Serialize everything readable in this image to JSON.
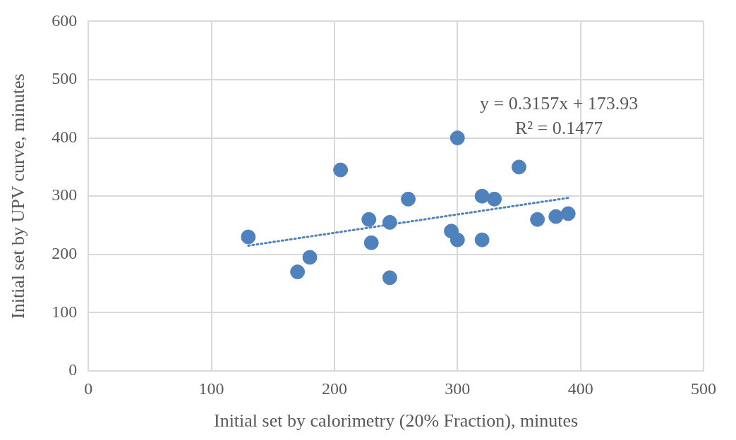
{
  "chart_data": {
    "type": "scatter",
    "xlabel": "Initial set by calorimetry (20% Fraction), minutes",
    "ylabel": "Initial set by UPV curve, minutes",
    "xlim": [
      0,
      500
    ],
    "xticks": [
      0,
      100,
      200,
      300,
      400,
      500
    ],
    "ylim": [
      0,
      600
    ],
    "yticks": [
      0,
      100,
      200,
      300,
      400,
      500,
      600
    ],
    "grid": true,
    "legend": false,
    "marker": "circle",
    "annotations": [
      "y = 0.3157x + 173.93",
      "R² = 0.1477"
    ],
    "series": [
      {
        "color": "#4f81bd",
        "x": [
          130,
          170,
          180,
          205,
          228,
          230,
          245,
          245,
          260,
          295,
          300,
          300,
          320,
          320,
          330,
          350,
          365,
          380,
          390
        ],
        "values": [
          230,
          170,
          195,
          345,
          260,
          220,
          255,
          160,
          295,
          240,
          400,
          225,
          300,
          225,
          295,
          350,
          260,
          265,
          270
        ]
      },
      {
        "type": "line",
        "color": "#4f81bd",
        "line_style": "dotted",
        "marker": "none",
        "x": [
          130,
          390
        ],
        "values": [
          215,
          297
        ]
      }
    ]
  }
}
